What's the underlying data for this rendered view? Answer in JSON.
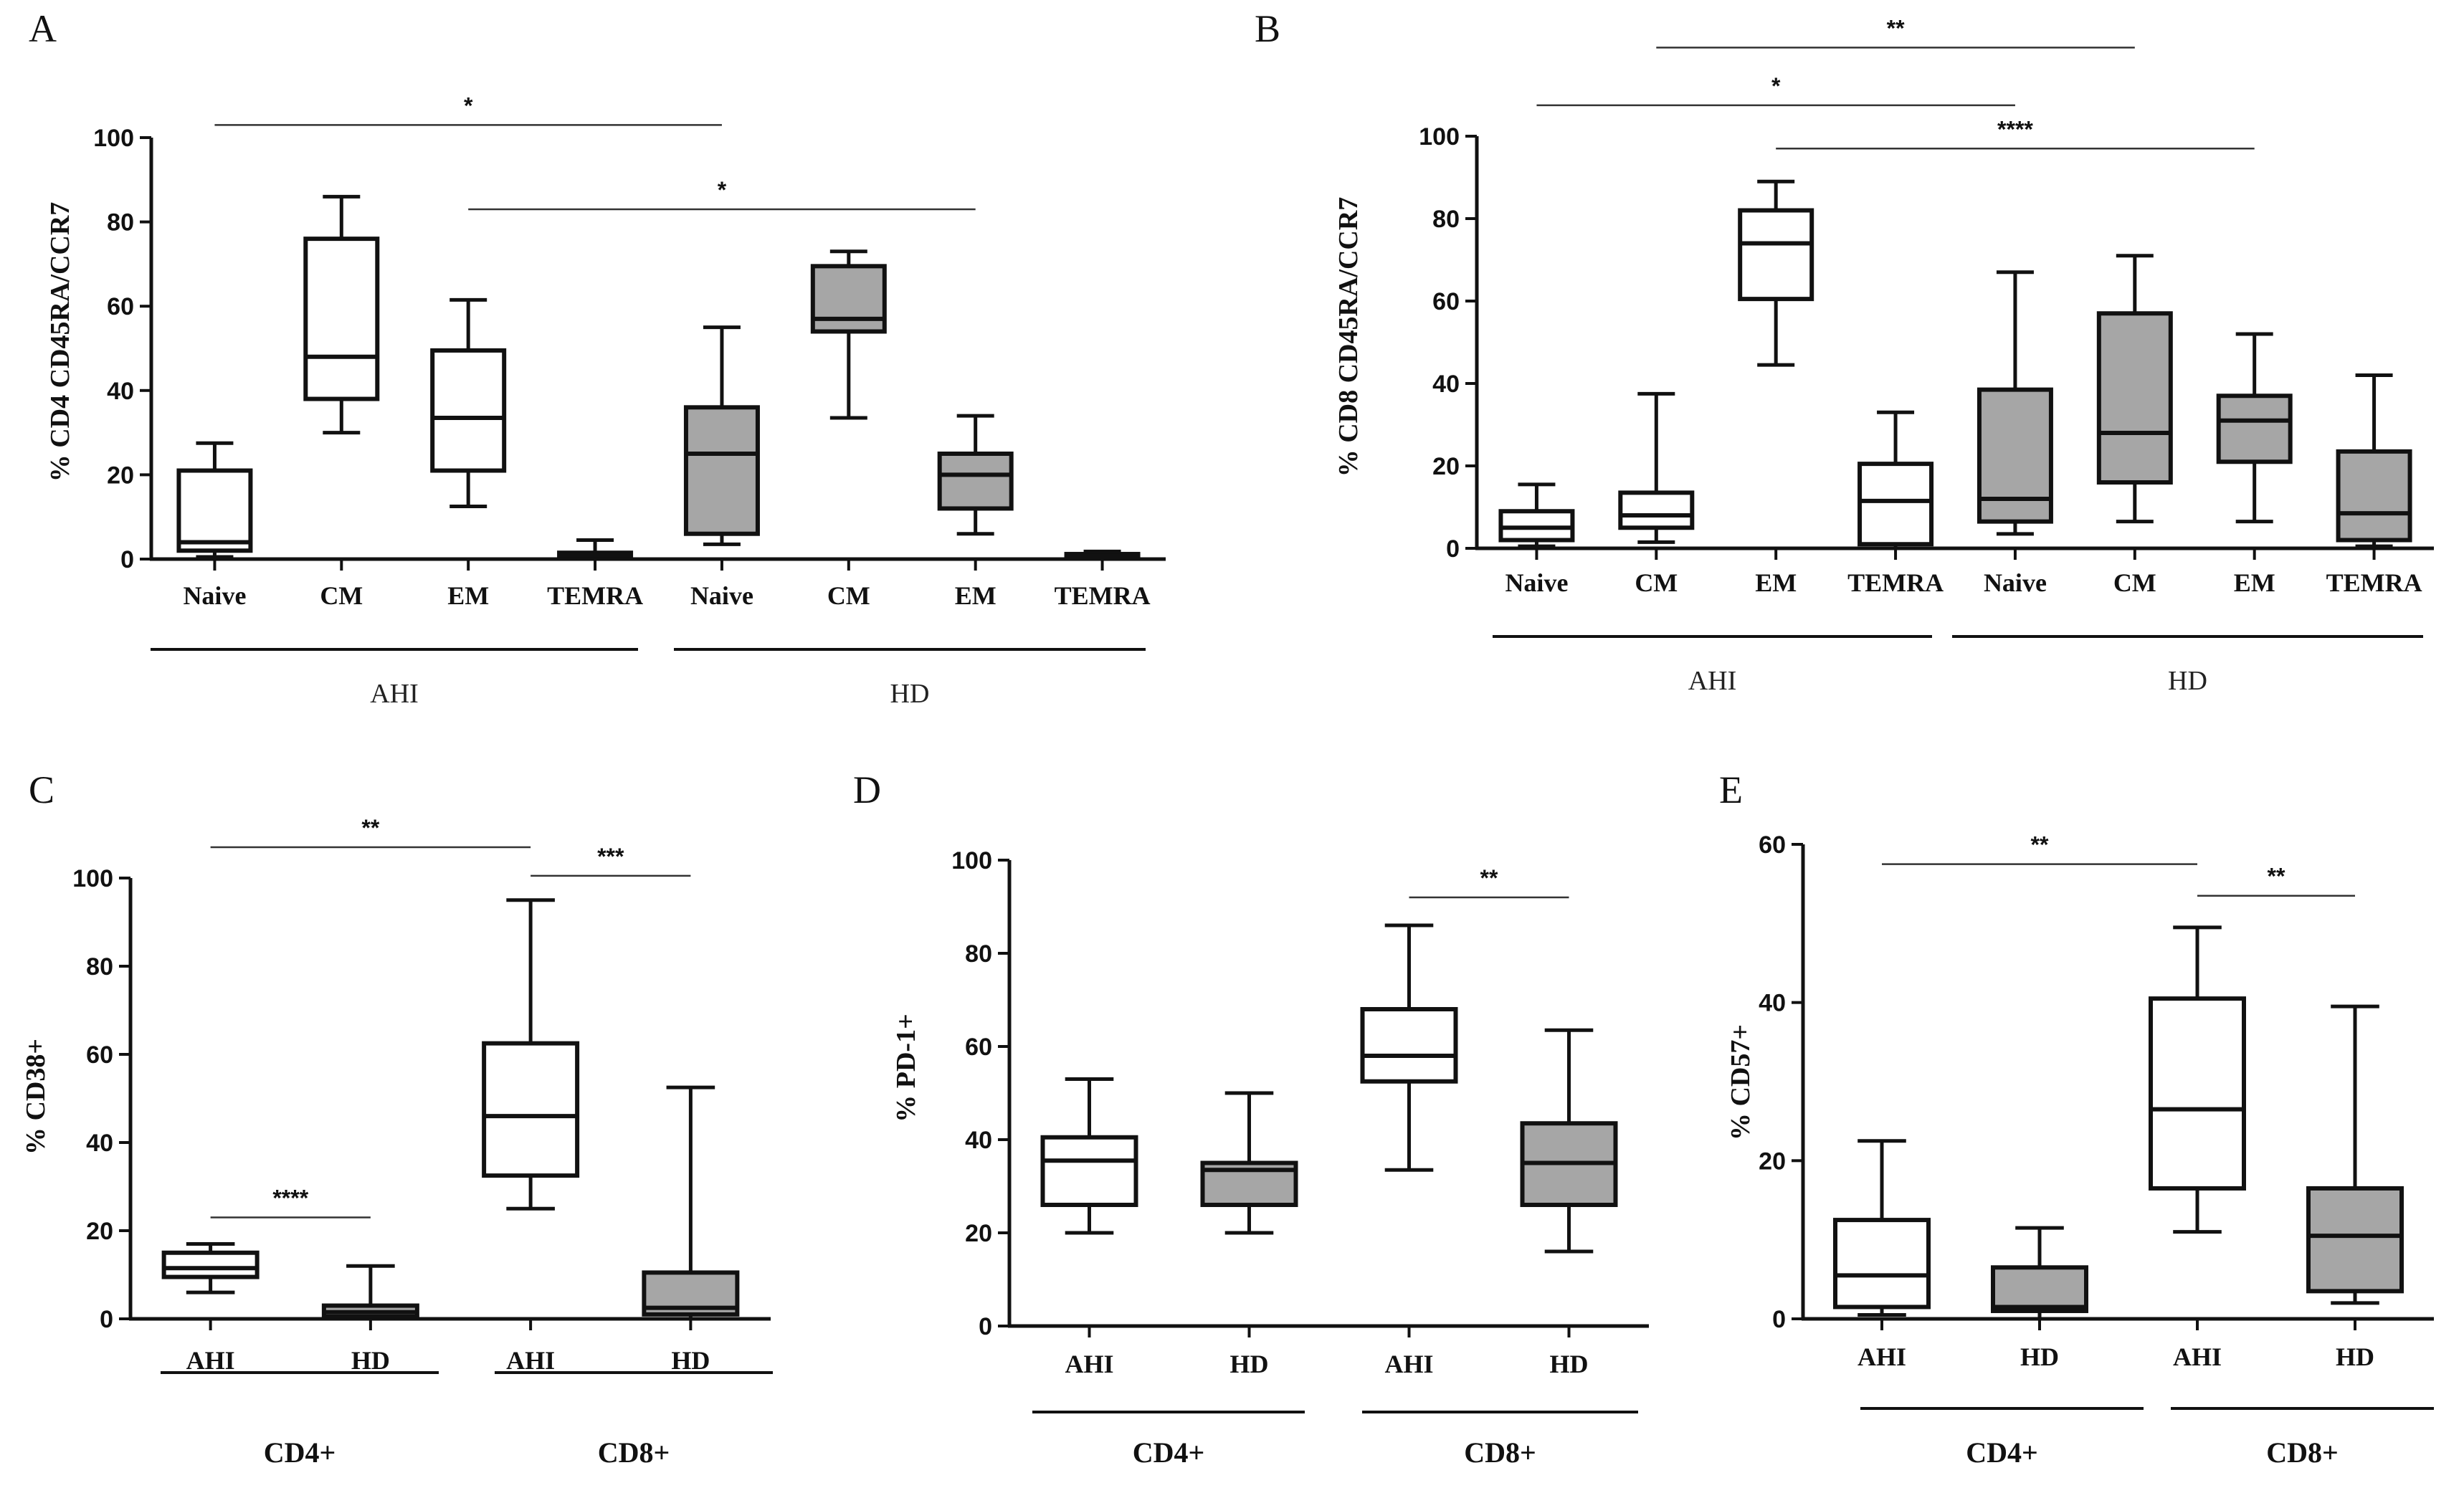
{
  "figure_title": "",
  "colors": {
    "white_box": "#ffffff",
    "grey_box": "#a6a6a6",
    "stroke": "#111111"
  },
  "chart_data": [
    {
      "panel": "A",
      "type": "box",
      "ylabel": "% CD4 CD45RA/CCR7",
      "ylim": [
        0,
        100
      ],
      "yticks": [
        0,
        20,
        40,
        60,
        80,
        100
      ],
      "categories": [
        "Naive",
        "CM",
        "EM",
        "TEMRA",
        "Naive",
        "CM",
        "EM",
        "TEMRA"
      ],
      "groups": [
        {
          "label": "AHI",
          "label_style": "plain",
          "from": 0,
          "to": 3
        },
        {
          "label": "HD",
          "label_style": "plain",
          "from": 4,
          "to": 7
        }
      ],
      "series": [
        {
          "name": "AHI",
          "fill": "white",
          "boxes": [
            {
              "min": 0.5,
              "q1": 2,
              "median": 4,
              "q3": 21,
              "max": 27.5
            },
            {
              "min": 30,
              "q1": 38,
              "median": 48,
              "q3": 76,
              "max": 86
            },
            {
              "min": 12.5,
              "q1": 21,
              "median": 33.5,
              "q3": 49.5,
              "max": 61.5
            },
            {
              "min": 0,
              "q1": 0.3,
              "median": 1,
              "q3": 1.5,
              "max": 4.5
            }
          ]
        },
        {
          "name": "HD",
          "fill": "grey",
          "boxes": [
            {
              "min": 3.5,
              "q1": 6,
              "median": 25,
              "q3": 36,
              "max": 55
            },
            {
              "min": 33.5,
              "q1": 54,
              "median": 57,
              "q3": 69.5,
              "max": 73
            },
            {
              "min": 6,
              "q1": 12,
              "median": 20,
              "q3": 25,
              "max": 34
            },
            {
              "min": 0,
              "q1": 0.3,
              "median": 0.8,
              "q3": 1.2,
              "max": 1.8
            }
          ]
        }
      ],
      "significance": [
        {
          "from": 0,
          "to": 4,
          "label": "*",
          "y": 103
        },
        {
          "from": 2,
          "to": 6,
          "label": "*",
          "y": 83
        }
      ]
    },
    {
      "panel": "B",
      "type": "box",
      "ylabel": "% CD8 CD45RA/CCR7",
      "ylim": [
        0,
        100
      ],
      "yticks": [
        0,
        20,
        40,
        60,
        80,
        100
      ],
      "categories": [
        "Naive",
        "CM",
        "EM",
        "TEMRA",
        "Naive",
        "CM",
        "EM",
        "TEMRA"
      ],
      "groups": [
        {
          "label": "AHI",
          "label_style": "plain",
          "from": 0,
          "to": 3
        },
        {
          "label": "HD",
          "label_style": "plain",
          "from": 4,
          "to": 7
        }
      ],
      "series": [
        {
          "name": "AHI",
          "fill": "white",
          "boxes": [
            {
              "min": 0.5,
              "q1": 2,
              "median": 5,
              "q3": 9,
              "max": 15.5
            },
            {
              "min": 1.5,
              "q1": 5,
              "median": 8,
              "q3": 13.5,
              "max": 37.5
            },
            {
              "min": 44.5,
              "q1": 60.5,
              "median": 74,
              "q3": 82,
              "max": 89
            },
            {
              "min": 0,
              "q1": 1,
              "median": 11.5,
              "q3": 20.5,
              "max": 33
            }
          ]
        },
        {
          "name": "HD",
          "fill": "grey",
          "boxes": [
            {
              "min": 3.5,
              "q1": 6.5,
              "median": 12,
              "q3": 38.5,
              "max": 67
            },
            {
              "min": 6.5,
              "q1": 16,
              "median": 28,
              "q3": 57,
              "max": 71
            },
            {
              "min": 6.5,
              "q1": 21,
              "median": 31,
              "q3": 37,
              "max": 52
            },
            {
              "min": 0.5,
              "q1": 2,
              "median": 8.5,
              "q3": 23.5,
              "max": 42
            }
          ]
        }
      ],
      "significance": [
        {
          "from": 1,
          "to": 5,
          "label": "**",
          "y": 121.5
        },
        {
          "from": 0,
          "to": 4,
          "label": "*",
          "y": 107.5
        },
        {
          "from": 2,
          "to": 6,
          "label": "****",
          "y": 97
        }
      ]
    },
    {
      "panel": "C",
      "type": "box",
      "ylabel": "% CD38+",
      "ylim": [
        0,
        100
      ],
      "yticks": [
        0,
        20,
        40,
        60,
        80,
        100
      ],
      "categories": [
        "AHI",
        "HD",
        "AHI",
        "HD"
      ],
      "groups": [
        {
          "label": "CD4+",
          "label_style": "bold",
          "from": 0,
          "to": 1
        },
        {
          "label": "CD8+",
          "label_style": "bold",
          "from": 2,
          "to": 3
        }
      ],
      "boxes": [
        {
          "fill": "white",
          "min": 6,
          "q1": 9.5,
          "median": 11.5,
          "q3": 15,
          "max": 17
        },
        {
          "fill": "grey",
          "min": 0,
          "q1": 0.5,
          "median": 1.5,
          "q3": 3,
          "max": 12
        },
        {
          "fill": "white",
          "min": 25,
          "q1": 32.5,
          "median": 46,
          "q3": 62.5,
          "max": 95
        },
        {
          "fill": "grey",
          "min": 0,
          "q1": 1,
          "median": 2.5,
          "q3": 10.5,
          "max": 52.5
        }
      ],
      "significance": [
        {
          "from": 0,
          "to": 2,
          "label": "**",
          "y": 107
        },
        {
          "from": 2,
          "to": 3,
          "label": "***",
          "y": 100.5
        },
        {
          "from": 0,
          "to": 1,
          "label": "****",
          "y": 23
        }
      ]
    },
    {
      "panel": "D",
      "type": "box",
      "ylabel": "% PD-1+",
      "ylim": [
        0,
        100
      ],
      "yticks": [
        0,
        20,
        40,
        60,
        80,
        100
      ],
      "categories": [
        "AHI",
        "HD",
        "AHI",
        "HD"
      ],
      "groups": [
        {
          "label": "CD4+",
          "label_style": "bold",
          "from": 0,
          "to": 1
        },
        {
          "label": "CD8+",
          "label_style": "bold",
          "from": 2,
          "to": 3
        }
      ],
      "boxes": [
        {
          "fill": "white",
          "min": 20,
          "q1": 26,
          "median": 35.5,
          "q3": 40.5,
          "max": 53
        },
        {
          "fill": "grey",
          "min": 20,
          "q1": 26,
          "median": 33.5,
          "q3": 35,
          "max": 50
        },
        {
          "fill": "white",
          "min": 33.5,
          "q1": 52.5,
          "median": 58,
          "q3": 68,
          "max": 86
        },
        {
          "fill": "grey",
          "min": 16,
          "q1": 26,
          "median": 35,
          "q3": 43.5,
          "max": 63.5
        }
      ],
      "significance": [
        {
          "from": 2,
          "to": 3,
          "label": "**",
          "y": 92
        }
      ]
    },
    {
      "panel": "E",
      "type": "box",
      "ylabel": "% CD57+",
      "ylim": [
        0,
        60
      ],
      "yticks": [
        0,
        20,
        40,
        60
      ],
      "categories": [
        "AHI",
        "HD",
        "AHI",
        "HD"
      ],
      "groups": [
        {
          "label": "CD4+",
          "label_style": "bold",
          "from": 0,
          "to": 1
        },
        {
          "label": "CD8+",
          "label_style": "bold",
          "from": 2,
          "to": 3
        }
      ],
      "boxes": [
        {
          "fill": "white",
          "min": 0.5,
          "q1": 1.5,
          "median": 5.5,
          "q3": 12.5,
          "max": 22.5
        },
        {
          "fill": "grey",
          "min": 0,
          "q1": 1,
          "median": 1.5,
          "q3": 6.5,
          "max": 11.5
        },
        {
          "fill": "white",
          "min": 11,
          "q1": 16.5,
          "median": 26.5,
          "q3": 40.5,
          "max": 49.5
        },
        {
          "fill": "grey",
          "min": 2,
          "q1": 3.5,
          "median": 10.5,
          "q3": 16.5,
          "max": 39.5
        }
      ],
      "significance": [
        {
          "from": 0,
          "to": 2,
          "label": "**",
          "y": 57.5
        },
        {
          "from": 2,
          "to": 3,
          "label": "**",
          "y": 53.5
        }
      ]
    }
  ]
}
